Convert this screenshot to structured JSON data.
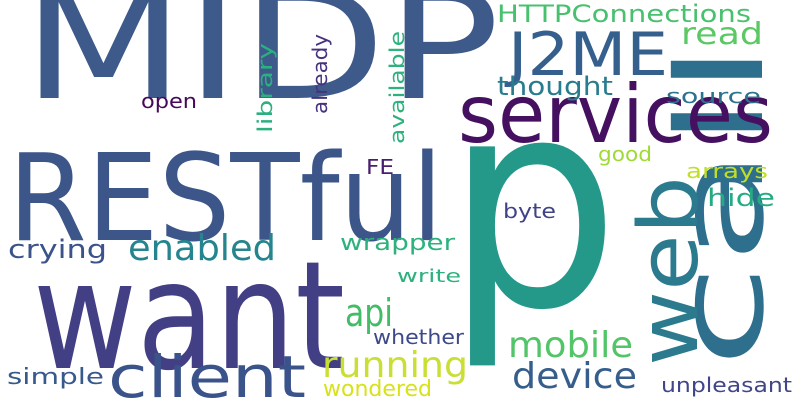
{
  "words": [
    {
      "text": "MIDP",
      "color": "#3e5a8a"
    },
    {
      "text": "p",
      "color": "#24998a"
    },
    {
      "text": "want",
      "color": "#433f84"
    },
    {
      "text": "RESTful",
      "color": "#3c5689"
    },
    {
      "text": "call",
      "color": "#2f6f8e"
    },
    {
      "text": "web",
      "color": "#2b7a8e"
    },
    {
      "text": "services",
      "color": "#44105f"
    },
    {
      "text": "J2ME",
      "color": "#355f8d"
    },
    {
      "text": "client",
      "color": "#3b538b"
    },
    {
      "text": "enabled",
      "color": "#25848e"
    },
    {
      "text": "running",
      "color": "#c9df34"
    },
    {
      "text": "api",
      "color": "#44bb67"
    },
    {
      "text": "mobile",
      "color": "#52c569"
    },
    {
      "text": "device",
      "color": "#355e8d"
    },
    {
      "text": "HTTPConnections",
      "color": "#48c16e"
    },
    {
      "text": "read",
      "color": "#5ac864"
    },
    {
      "text": "thought",
      "color": "#287c8e"
    },
    {
      "text": "crying",
      "color": "#3b528b"
    },
    {
      "text": "wrapper",
      "color": "#2db27d"
    },
    {
      "text": "source",
      "color": "#2c728e"
    },
    {
      "text": "hide",
      "color": "#25ab82"
    },
    {
      "text": "arrays",
      "color": "#c2df23"
    },
    {
      "text": "good",
      "color": "#a0da39"
    },
    {
      "text": "byte",
      "color": "#404387"
    },
    {
      "text": "library",
      "color": "#2bb07f"
    },
    {
      "text": "already",
      "color": "#46327e"
    },
    {
      "text": "available",
      "color": "#2db27d"
    },
    {
      "text": "open",
      "color": "#46085c"
    },
    {
      "text": "FE",
      "color": "#481f70"
    },
    {
      "text": "write",
      "color": "#2cb17e"
    },
    {
      "text": "whether",
      "color": "#3e4989"
    },
    {
      "text": "simple",
      "color": "#38598c"
    },
    {
      "text": "wondered",
      "color": "#d8e219"
    },
    {
      "text": "unpleasant",
      "color": "#404688"
    }
  ]
}
